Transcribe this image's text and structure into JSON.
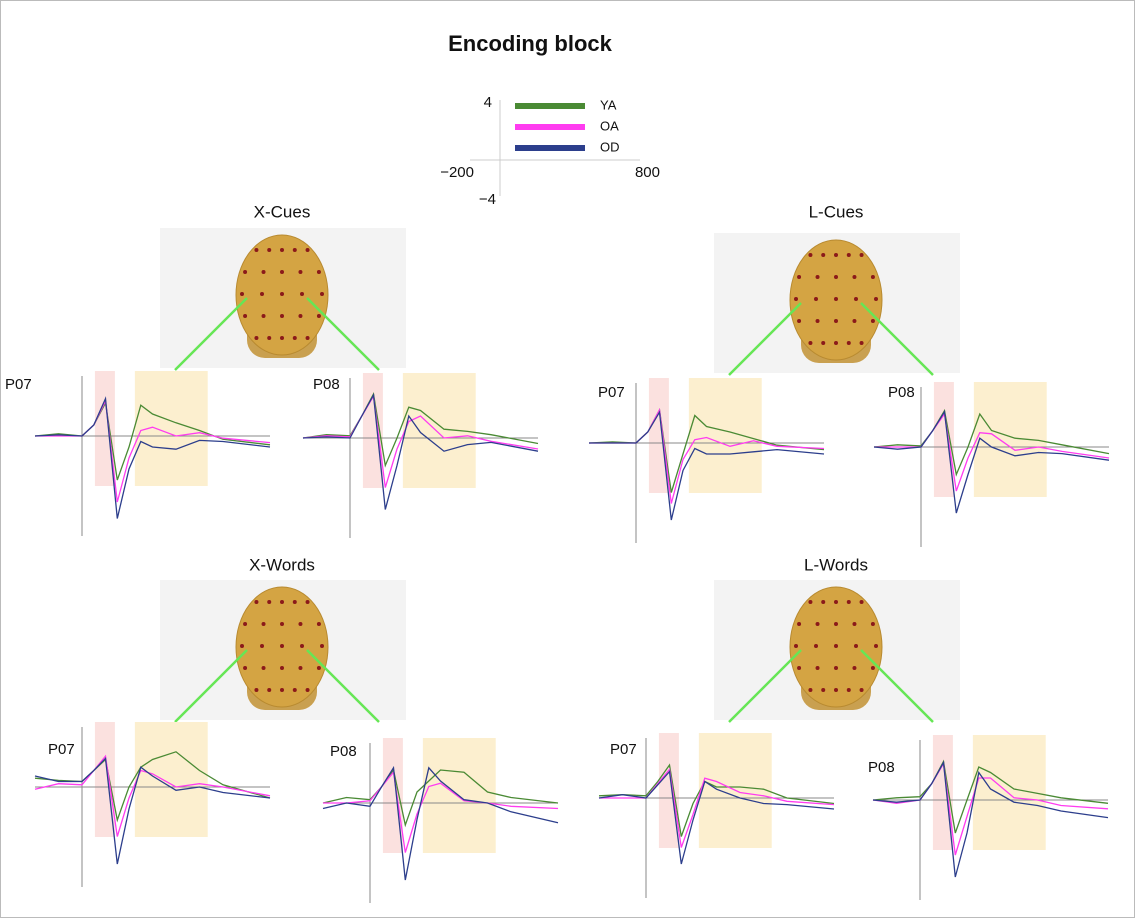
{
  "title": "Encoding block",
  "scale": {
    "y_labels": [
      "4",
      "−4"
    ],
    "x_labels": [
      "−200",
      "800"
    ]
  },
  "legend": [
    {
      "name": "YA",
      "color": "#4a8a34"
    },
    {
      "name": "OA",
      "color": "#ff3cf0"
    },
    {
      "name": "OD",
      "color": "#2c3e8c"
    }
  ],
  "x_ms": [
    -200,
    -100,
    0,
    50,
    100,
    150,
    200,
    250,
    300,
    400,
    500,
    600,
    800
  ],
  "windows_ms": [
    [
      55,
      140
    ],
    [
      225,
      535
    ]
  ],
  "panels": [
    {
      "title": "X-Cues",
      "electrodes": [
        {
          "label": "P07",
          "series": [
            {
              "values": [
                0,
                0.2,
                0,
                1,
                3,
                -4,
                -1,
                2.8,
                2,
                1.2,
                0.5,
                -0.3,
                -0.8
              ]
            },
            {
              "values": [
                0,
                0,
                0,
                1,
                3.2,
                -6,
                -2,
                0.5,
                0.8,
                0,
                0.3,
                -0.2,
                -0.6
              ]
            },
            {
              "values": [
                0,
                0.1,
                0,
                1,
                3.4,
                -7.5,
                -3,
                -0.5,
                -1,
                -1.2,
                -0.4,
                -0.5,
                -1
              ]
            }
          ]
        },
        {
          "label": "P08",
          "series": [
            {
              "values": [
                0,
                0.3,
                0.2,
                2,
                4,
                -2.5,
                0,
                2.8,
                2.5,
                0.8,
                0.6,
                0.3,
                -0.5
              ]
            },
            {
              "values": [
                0,
                0.2,
                0.1,
                2,
                3.8,
                -4.5,
                -1,
                1.5,
                2,
                0,
                0.2,
                -0.3,
                -1
              ]
            },
            {
              "values": [
                0,
                0.1,
                0,
                2,
                3.9,
                -6.5,
                -2.5,
                2,
                0.5,
                -1.2,
                -0.6,
                -0.4,
                -1.2
              ]
            }
          ]
        }
      ]
    },
    {
      "title": "L-Cues",
      "electrodes": [
        {
          "label": "P07",
          "series": [
            {
              "values": [
                0,
                0.1,
                0,
                1,
                3,
                -4.5,
                -1,
                2.5,
                1.5,
                1,
                0.4,
                -0.2,
                -0.6
              ]
            },
            {
              "values": [
                0,
                0,
                0,
                1,
                3,
                -5.5,
                -1.5,
                0.3,
                0.5,
                -0.3,
                0.2,
                -0.3,
                -0.5
              ]
            },
            {
              "values": [
                0,
                0,
                0,
                1,
                2.8,
                -7,
                -2.5,
                -0.5,
                -1,
                -1,
                -0.8,
                -0.6,
                -1
              ]
            }
          ]
        },
        {
          "label": "P08",
          "series": [
            {
              "values": [
                0,
                0.2,
                0.1,
                1.5,
                3.3,
                -2.5,
                0,
                3,
                1.5,
                0.8,
                0.6,
                0.2,
                -0.6
              ]
            },
            {
              "values": [
                0,
                0,
                0,
                1.5,
                3,
                -4,
                -1,
                1.3,
                1.2,
                -0.3,
                0,
                -0.4,
                -1
              ]
            },
            {
              "values": [
                0,
                -0.2,
                0,
                1.5,
                3.2,
                -6,
                -2.5,
                0.8,
                0,
                -0.8,
                -0.5,
                -0.6,
                -1.2
              ]
            }
          ]
        }
      ]
    },
    {
      "title": "X-Words",
      "electrodes": [
        {
          "label": "P07",
          "series": [
            {
              "values": [
                0.8,
                0.6,
                0.5,
                1.5,
                2.5,
                -3,
                0,
                1.8,
                2.5,
                3.2,
                1.5,
                0.2,
                -1
              ]
            },
            {
              "values": [
                -0.2,
                0.3,
                0.2,
                1.5,
                2.8,
                -4.5,
                -1,
                1.5,
                1.2,
                0,
                0.3,
                0,
                -0.8
              ]
            },
            {
              "values": [
                1,
                0.5,
                0.5,
                1.5,
                2.6,
                -7,
                -2,
                1.8,
                1,
                -0.3,
                0,
                -0.5,
                -1
              ]
            }
          ]
        },
        {
          "label": "P08",
          "series": [
            {
              "values": [
                0,
                0.5,
                0.3,
                1.5,
                3,
                -2,
                1,
                2,
                3,
                2.8,
                1,
                0.5,
                0
              ]
            },
            {
              "values": [
                0,
                0,
                0.2,
                1.5,
                2.8,
                -4.5,
                -1,
                1.5,
                1.8,
                0.2,
                0,
                -0.3,
                -0.5
              ]
            },
            {
              "values": [
                -0.5,
                0,
                -0.3,
                1.5,
                3.2,
                -7,
                -1.5,
                3.2,
                2,
                0.3,
                0,
                -0.8,
                -1.8
              ]
            }
          ]
        }
      ]
    },
    {
      "title": "L-Words",
      "electrodes": [
        {
          "label": "P07",
          "series": [
            {
              "values": [
                0.2,
                0.3,
                0.2,
                1.5,
                3,
                -3.5,
                -0.5,
                1.5,
                1,
                1,
                0.8,
                0,
                -0.5
              ]
            },
            {
              "values": [
                0,
                0,
                0,
                1.3,
                2.6,
                -4.5,
                -1.5,
                1.8,
                1.5,
                0.5,
                0.2,
                -0.3,
                -0.6
              ]
            },
            {
              "values": [
                0,
                0.3,
                0,
                1.2,
                2.4,
                -6,
                -2,
                1.5,
                0.8,
                0,
                -0.5,
                -0.6,
                -1
              ]
            }
          ]
        },
        {
          "label": "P08",
          "series": [
            {
              "values": [
                0,
                0.2,
                0.3,
                1.5,
                3.5,
                -3,
                0,
                3,
                2.5,
                1,
                0.6,
                0.2,
                -0.3
              ]
            },
            {
              "values": [
                0,
                -0.3,
                0,
                1.5,
                3.3,
                -5,
                -1.5,
                2,
                2,
                0.2,
                0,
                -0.5,
                -0.8
              ]
            },
            {
              "values": [
                0,
                -0.2,
                0,
                1.5,
                3.4,
                -7,
                -3,
                2.5,
                1,
                -0.2,
                -0.5,
                -1,
                -1.6
              ]
            }
          ]
        }
      ]
    }
  ]
}
